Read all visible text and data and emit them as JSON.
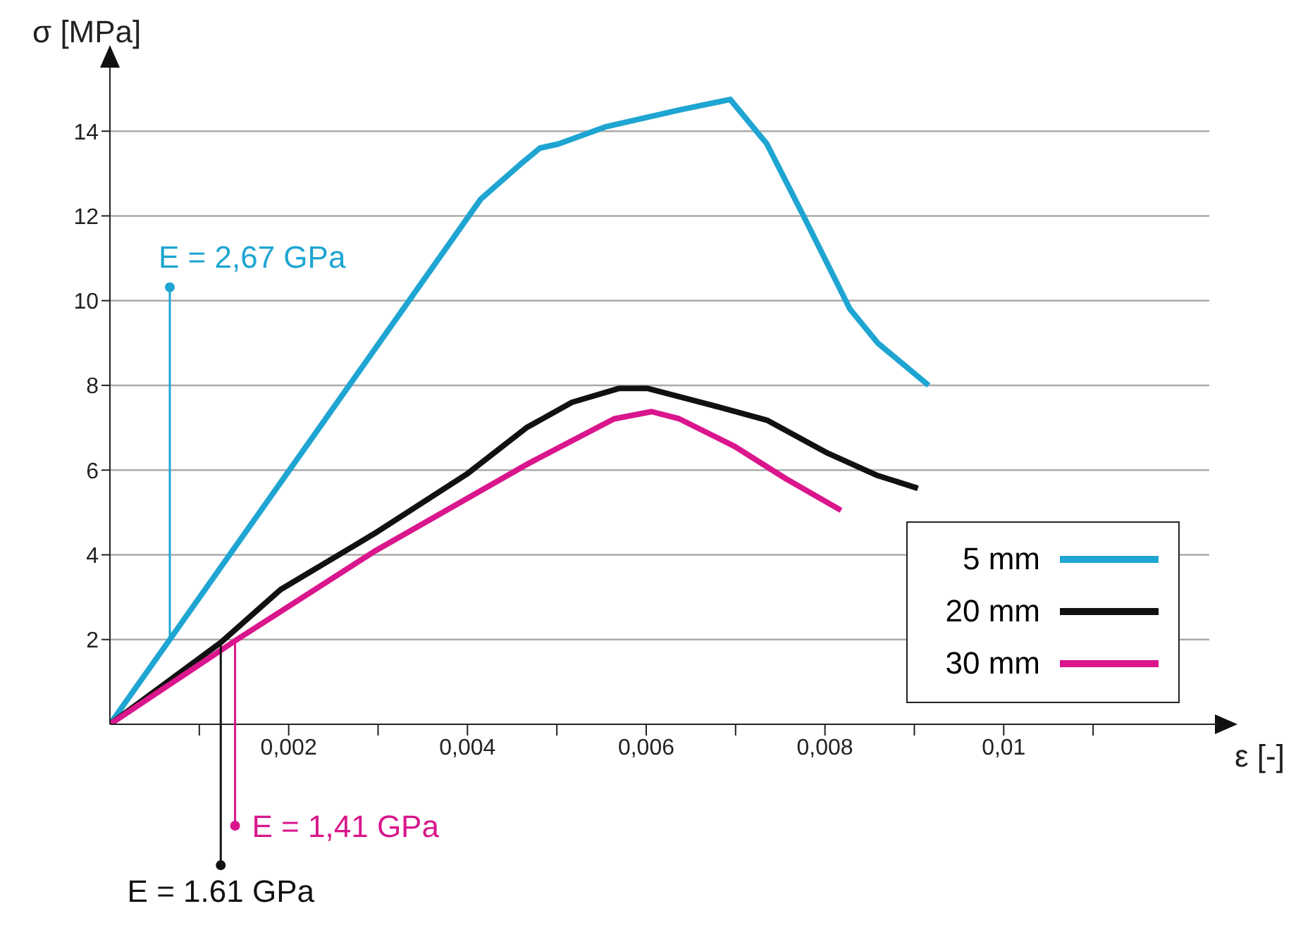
{
  "chart_data": {
    "type": "line",
    "xlabel": "ε [-]",
    "ylabel": "σ [MPa]",
    "xlim": [
      0,
      0.0123
    ],
    "xticks": [
      {
        "value": 0.001,
        "label": null
      },
      {
        "value": 0.002,
        "label": "0,002"
      },
      {
        "value": 0.003,
        "label": null
      },
      {
        "value": 0.004,
        "label": "0,004"
      },
      {
        "value": 0.005,
        "label": null
      },
      {
        "value": 0.006,
        "label": "0,006"
      },
      {
        "value": 0.007,
        "label": null
      },
      {
        "value": 0.008,
        "label": "0,008"
      },
      {
        "value": 0.009,
        "label": null
      },
      {
        "value": 0.01,
        "label": "0,01"
      },
      {
        "value": 0.011,
        "label": null
      }
    ],
    "ylim": [
      0,
      15.5
    ],
    "yticks": [
      2,
      4,
      6,
      8,
      10,
      12,
      14
    ],
    "grid": "y",
    "legend": "bottom right",
    "series": [
      {
        "name": "5 mm",
        "color": "#1ea5d2",
        "x": [
          0,
          0.00415,
          0.00461,
          0.00481,
          0.00502,
          0.00554,
          0.00637,
          0.00694,
          0.00735,
          0.00776,
          0.00828,
          0.00859,
          0.00916
        ],
        "values": [
          0,
          12.4,
          13.25,
          13.6,
          13.7,
          14.1,
          14.5,
          14.75,
          13.7,
          12.0,
          9.8,
          9.0,
          8.0
        ]
      },
      {
        "name": "20 mm",
        "color": "#111111",
        "x": [
          0,
          0.00124,
          0.00191,
          0.00295,
          0.00399,
          0.00466,
          0.00517,
          0.0057,
          0.00601,
          0.00672,
          0.00735,
          0.00803,
          0.00859,
          0.00904
        ],
        "values": [
          0,
          1.93,
          3.18,
          4.49,
          5.9,
          7.0,
          7.6,
          7.93,
          7.93,
          7.54,
          7.18,
          6.4,
          5.87,
          5.57
        ]
      },
      {
        "name": "30 mm",
        "color": "#d9168c",
        "x": [
          0,
          0.0014,
          0.00295,
          0.00466,
          0.00564,
          0.00606,
          0.00637,
          0.00699,
          0.00756,
          0.00818
        ],
        "values": [
          0,
          1.97,
          4.07,
          6.13,
          7.21,
          7.38,
          7.21,
          6.56,
          5.8,
          5.05
        ]
      }
    ],
    "annotations": [
      {
        "text": "E = 2,67 GPa",
        "x": 0.00067,
        "y": 2
      },
      {
        "text": "E = 1.61 GPa",
        "x": 0.00124,
        "y": 1.93
      },
      {
        "text": "E = 1,41 GPa",
        "x": 0.0014,
        "y": 2
      }
    ]
  }
}
